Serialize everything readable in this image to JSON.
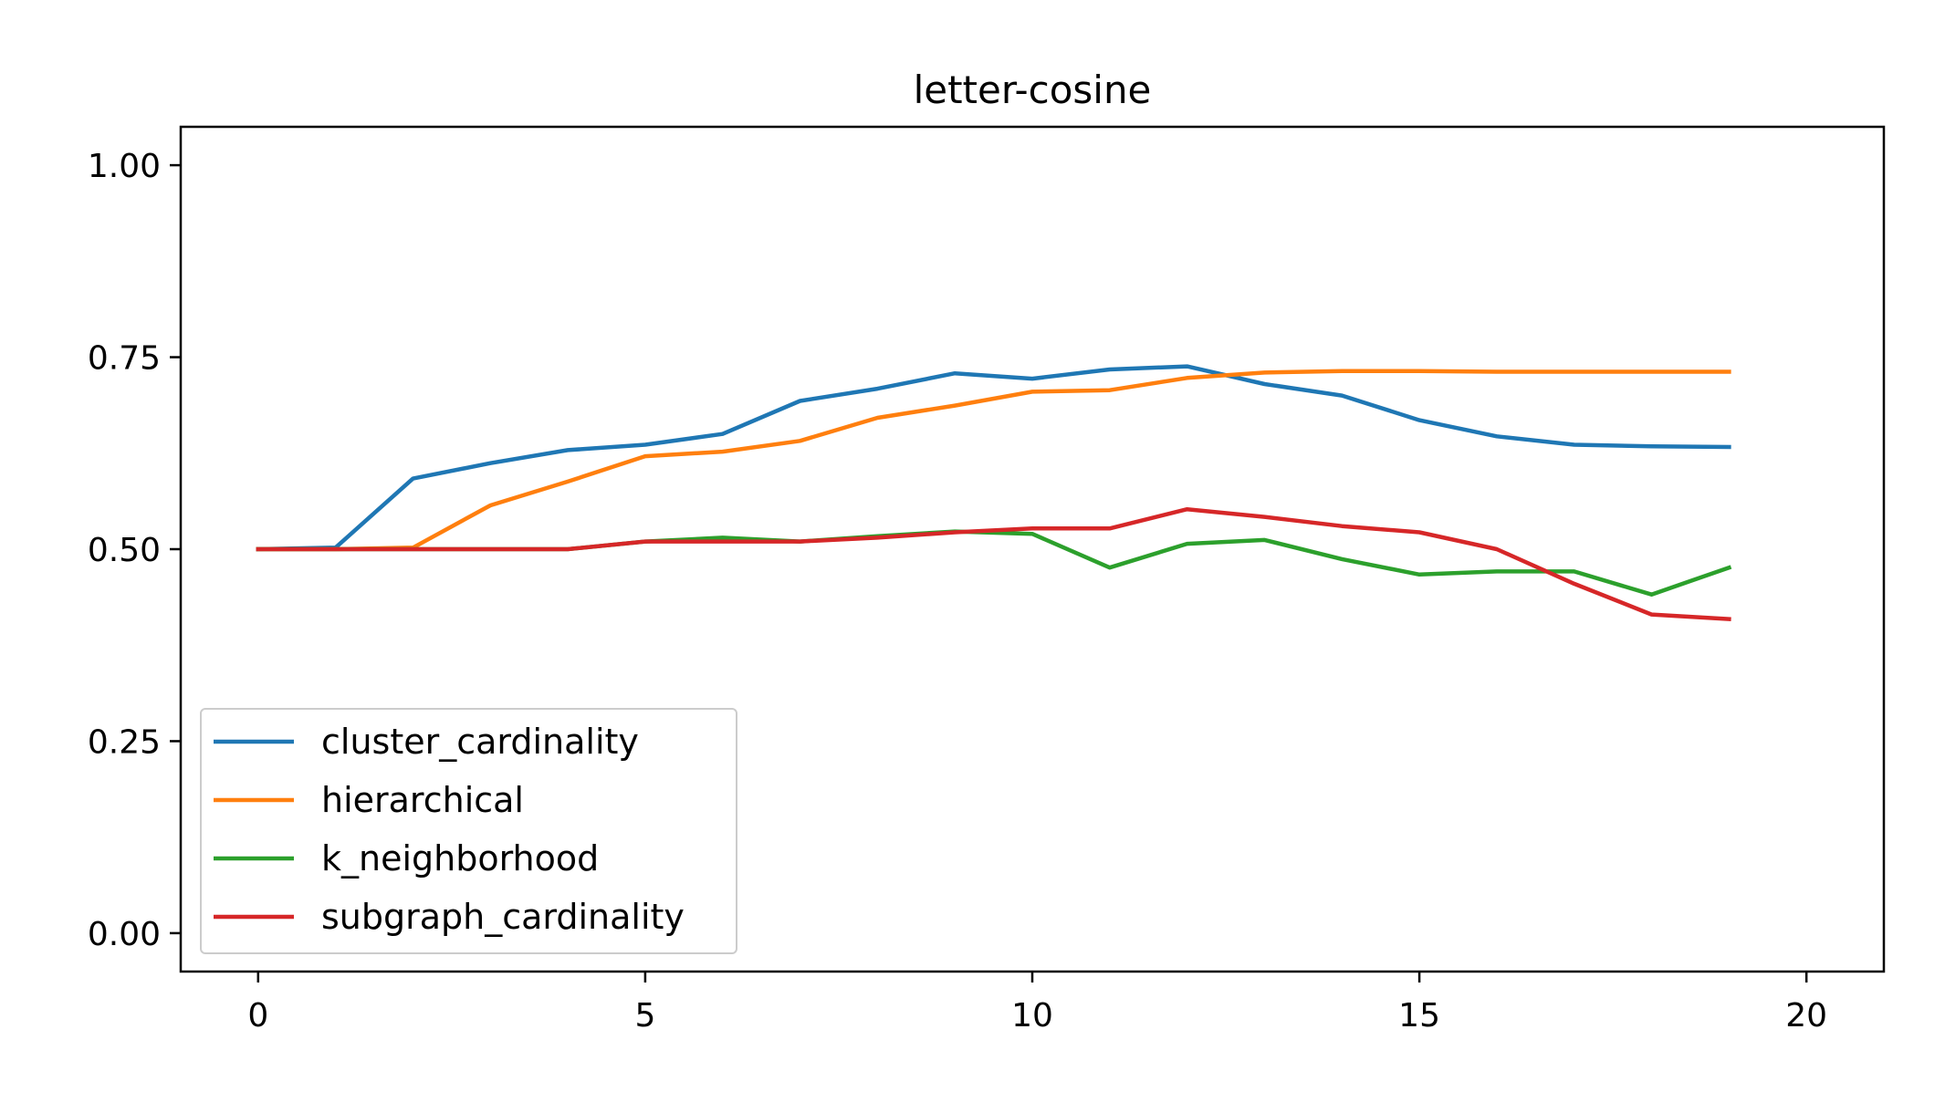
{
  "chart_data": {
    "type": "line",
    "title": "letter-cosine",
    "xlabel": "",
    "ylabel": "",
    "xlim": [
      -1,
      21
    ],
    "ylim": [
      -0.05,
      1.05
    ],
    "xticks": [
      0,
      5,
      10,
      15,
      20
    ],
    "xtick_labels": [
      "0",
      "5",
      "10",
      "15",
      "20"
    ],
    "yticks": [
      0.0,
      0.25,
      0.5,
      0.75,
      1.0
    ],
    "ytick_labels": [
      "0.00",
      "0.25",
      "0.50",
      "0.75",
      "1.00"
    ],
    "grid": false,
    "legend_position": "lower-left",
    "x": [
      0,
      1,
      2,
      3,
      4,
      5,
      6,
      7,
      8,
      9,
      10,
      11,
      12,
      13,
      14,
      15,
      16,
      17,
      18,
      19
    ],
    "series": [
      {
        "name": "cluster_cardinality",
        "color": "#1f77b4",
        "values": [
          0.5,
          0.502,
          0.592,
          0.612,
          0.629,
          0.636,
          0.65,
          0.693,
          0.709,
          0.729,
          0.722,
          0.734,
          0.738,
          0.715,
          0.7,
          0.668,
          0.647,
          0.636,
          0.634,
          0.633
        ]
      },
      {
        "name": "hierarchical",
        "color": "#ff7f0e",
        "values": [
          0.5,
          0.5,
          0.502,
          0.557,
          0.588,
          0.621,
          0.627,
          0.641,
          0.671,
          0.687,
          0.705,
          0.707,
          0.723,
          0.73,
          0.732,
          0.732,
          0.731,
          0.731,
          0.731,
          0.731
        ]
      },
      {
        "name": "k_neighborhood",
        "color": "#2ca02c",
        "values": [
          0.5,
          0.5,
          0.5,
          0.5,
          0.5,
          0.51,
          0.515,
          0.51,
          0.517,
          0.523,
          0.52,
          0.476,
          0.507,
          0.512,
          0.487,
          0.467,
          0.471,
          0.471,
          0.441,
          0.476
        ]
      },
      {
        "name": "subgraph_cardinality",
        "color": "#d62728",
        "values": [
          0.5,
          0.5,
          0.5,
          0.5,
          0.5,
          0.51,
          0.51,
          0.51,
          0.515,
          0.522,
          0.527,
          0.527,
          0.552,
          0.542,
          0.53,
          0.522,
          0.5,
          0.455,
          0.415,
          0.409
        ]
      }
    ]
  }
}
